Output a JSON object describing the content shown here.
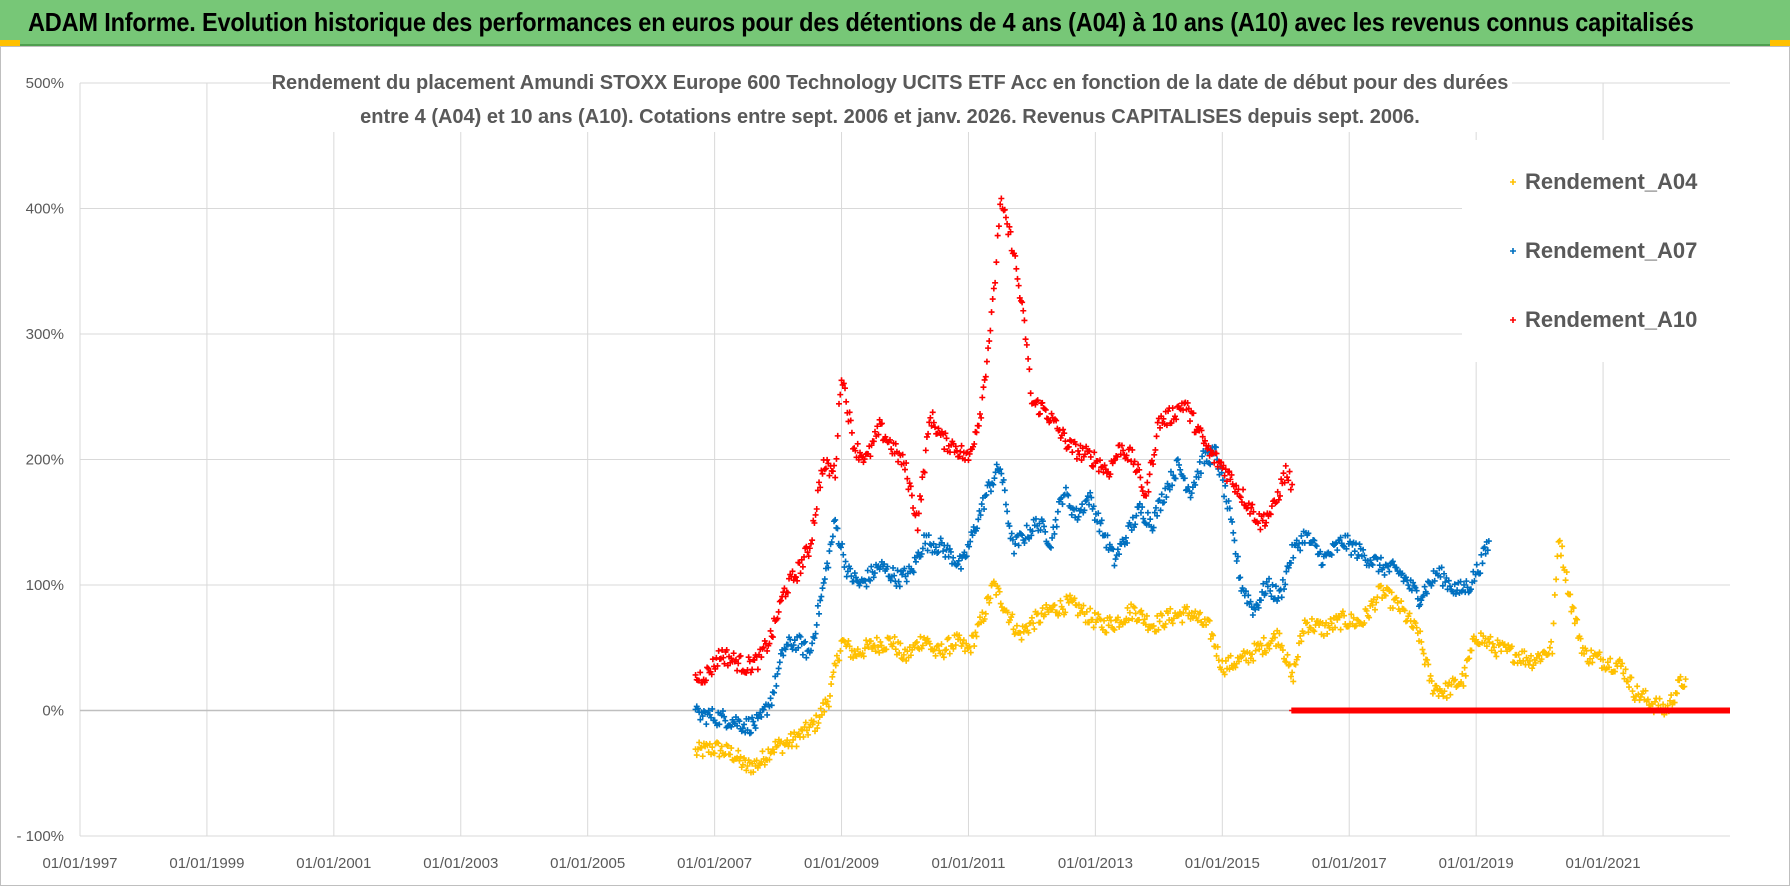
{
  "header": {
    "title": "ADAM Informe. Evolution historique des performances en euros pour des détentions de 4 ans (A04) à 10 ans (A10) avec les revenus connus capitalisés"
  },
  "colors": {
    "header_bg": "#77c777",
    "A04": "#ffc000",
    "A07": "#0070c0",
    "A10": "#ff0000"
  },
  "chart_data": {
    "type": "scatter",
    "title_line1": "Rendement du placement Amundi STOXX Europe 600 Technology UCITS ETF Acc en fonction de la date de début pour des durées",
    "title_line2": "entre 4 (A04) et 10 ans (A10).  Cotations entre sept. 2006 et janv. 2026. Revenus CAPITALISES depuis sept. 2006.",
    "xlabel": "",
    "ylabel": "",
    "x_range": [
      1997.0,
      2023.0
    ],
    "ylim": [
      -100,
      500
    ],
    "y_ticks": [
      -100,
      0,
      100,
      200,
      300,
      400,
      500
    ],
    "y_tick_labels": [
      "- 100%",
      "0%",
      "100%",
      "200%",
      "300%",
      "400%",
      "500%"
    ],
    "x_ticks": [
      1997,
      1999,
      2001,
      2003,
      2005,
      2007,
      2009,
      2011,
      2013,
      2015,
      2017,
      2019,
      2021
    ],
    "x_tick_labels": [
      "01/01/1997",
      "01/01/1999",
      "01/01/2001",
      "01/01/2003",
      "01/01/2005",
      "01/01/2007",
      "01/01/2009",
      "01/01/2011",
      "01/01/2013",
      "01/01/2015",
      "01/01/2017",
      "01/01/2019",
      "01/01/2021"
    ],
    "grid": true,
    "legend_position": "top-right",
    "series": [
      {
        "name": "Rendement_A04",
        "color": "#ffc000",
        "points": [
          [
            2006.7,
            -33
          ],
          [
            2007.0,
            -30
          ],
          [
            2007.3,
            -35
          ],
          [
            2007.5,
            -45
          ],
          [
            2007.7,
            -42
          ],
          [
            2007.9,
            -30
          ],
          [
            2008.2,
            -25
          ],
          [
            2008.4,
            -18
          ],
          [
            2008.6,
            -10
          ],
          [
            2008.8,
            10
          ],
          [
            2009.0,
            55
          ],
          [
            2009.2,
            45
          ],
          [
            2009.5,
            52
          ],
          [
            2009.8,
            55
          ],
          [
            2010.0,
            42
          ],
          [
            2010.3,
            58
          ],
          [
            2010.5,
            45
          ],
          [
            2010.8,
            55
          ],
          [
            2011.0,
            48
          ],
          [
            2011.2,
            70
          ],
          [
            2011.4,
            100
          ],
          [
            2011.6,
            80
          ],
          [
            2011.8,
            60
          ],
          [
            2012.0,
            70
          ],
          [
            2012.3,
            80
          ],
          [
            2012.6,
            85
          ],
          [
            2012.9,
            75
          ],
          [
            2013.1,
            68
          ],
          [
            2013.3,
            70
          ],
          [
            2013.6,
            80
          ],
          [
            2013.9,
            68
          ],
          [
            2014.2,
            75
          ],
          [
            2014.5,
            78
          ],
          [
            2014.8,
            65
          ],
          [
            2015.0,
            35
          ],
          [
            2015.3,
            40
          ],
          [
            2015.6,
            50
          ],
          [
            2015.9,
            60
          ],
          [
            2016.1,
            25
          ],
          [
            2016.3,
            70
          ],
          [
            2016.6,
            65
          ],
          [
            2016.9,
            72
          ],
          [
            2017.2,
            70
          ],
          [
            2017.5,
            95
          ],
          [
            2017.8,
            82
          ],
          [
            2018.1,
            60
          ],
          [
            2018.3,
            20
          ],
          [
            2018.5,
            15
          ],
          [
            2018.8,
            25
          ],
          [
            2019.0,
            60
          ],
          [
            2019.3,
            50
          ],
          [
            2019.6,
            45
          ],
          [
            2019.9,
            40
          ],
          [
            2020.2,
            50
          ],
          [
            2020.3,
            140
          ],
          [
            2020.5,
            85
          ],
          [
            2020.7,
            45
          ],
          [
            2021.0,
            40
          ],
          [
            2021.3,
            35
          ],
          [
            2021.5,
            15
          ],
          [
            2021.8,
            5
          ],
          [
            2022.0,
            0
          ],
          [
            2022.2,
            20
          ],
          [
            2022.3,
            25
          ]
        ]
      },
      {
        "name": "Rendement_A07",
        "color": "#0070c0",
        "points": [
          [
            2006.7,
            -3
          ],
          [
            2007.0,
            -5
          ],
          [
            2007.3,
            -8
          ],
          [
            2007.5,
            -12
          ],
          [
            2007.7,
            -10
          ],
          [
            2007.9,
            10
          ],
          [
            2008.1,
            50
          ],
          [
            2008.3,
            55
          ],
          [
            2008.5,
            45
          ],
          [
            2008.7,
            95
          ],
          [
            2008.9,
            150
          ],
          [
            2009.1,
            110
          ],
          [
            2009.3,
            100
          ],
          [
            2009.6,
            115
          ],
          [
            2009.9,
            105
          ],
          [
            2010.1,
            110
          ],
          [
            2010.3,
            135
          ],
          [
            2010.6,
            130
          ],
          [
            2010.9,
            115
          ],
          [
            2011.1,
            145
          ],
          [
            2011.3,
            175
          ],
          [
            2011.5,
            195
          ],
          [
            2011.7,
            130
          ],
          [
            2011.9,
            140
          ],
          [
            2012.1,
            150
          ],
          [
            2012.3,
            135
          ],
          [
            2012.5,
            175
          ],
          [
            2012.7,
            155
          ],
          [
            2012.9,
            170
          ],
          [
            2013.1,
            145
          ],
          [
            2013.3,
            120
          ],
          [
            2013.5,
            140
          ],
          [
            2013.7,
            160
          ],
          [
            2013.9,
            150
          ],
          [
            2014.1,
            175
          ],
          [
            2014.3,
            195
          ],
          [
            2014.5,
            175
          ],
          [
            2014.7,
            200
          ],
          [
            2014.9,
            205
          ],
          [
            2015.1,
            160
          ],
          [
            2015.3,
            100
          ],
          [
            2015.5,
            80
          ],
          [
            2015.7,
            100
          ],
          [
            2015.9,
            90
          ],
          [
            2016.1,
            125
          ],
          [
            2016.3,
            140
          ],
          [
            2016.6,
            120
          ],
          [
            2016.9,
            135
          ],
          [
            2017.2,
            125
          ],
          [
            2017.5,
            115
          ],
          [
            2017.8,
            110
          ],
          [
            2018.1,
            90
          ],
          [
            2018.4,
            110
          ],
          [
            2018.7,
            95
          ],
          [
            2018.9,
            100
          ],
          [
            2019.1,
            120
          ],
          [
            2019.2,
            135
          ]
        ]
      },
      {
        "name": "Rendement_A10",
        "color": "#ff0000",
        "points": [
          [
            2006.7,
            25
          ],
          [
            2006.9,
            30
          ],
          [
            2007.1,
            45
          ],
          [
            2007.3,
            40
          ],
          [
            2007.5,
            35
          ],
          [
            2007.7,
            40
          ],
          [
            2007.9,
            60
          ],
          [
            2008.1,
            95
          ],
          [
            2008.3,
            110
          ],
          [
            2008.5,
            130
          ],
          [
            2008.7,
            195
          ],
          [
            2008.9,
            190
          ],
          [
            2009.0,
            270
          ],
          [
            2009.2,
            210
          ],
          [
            2009.4,
            200
          ],
          [
            2009.6,
            225
          ],
          [
            2009.8,
            210
          ],
          [
            2010.0,
            195
          ],
          [
            2010.2,
            150
          ],
          [
            2010.4,
            235
          ],
          [
            2010.6,
            215
          ],
          [
            2010.8,
            210
          ],
          [
            2011.0,
            200
          ],
          [
            2011.2,
            240
          ],
          [
            2011.4,
            330
          ],
          [
            2011.5,
            405
          ],
          [
            2011.7,
            370
          ],
          [
            2011.9,
            300
          ],
          [
            2012.0,
            245
          ],
          [
            2012.2,
            240
          ],
          [
            2012.4,
            225
          ],
          [
            2012.6,
            210
          ],
          [
            2012.8,
            205
          ],
          [
            2013.0,
            200
          ],
          [
            2013.2,
            190
          ],
          [
            2013.4,
            210
          ],
          [
            2013.6,
            200
          ],
          [
            2013.8,
            170
          ],
          [
            2014.0,
            230
          ],
          [
            2014.2,
            235
          ],
          [
            2014.4,
            245
          ],
          [
            2014.6,
            225
          ],
          [
            2014.8,
            205
          ],
          [
            2015.0,
            195
          ],
          [
            2015.2,
            180
          ],
          [
            2015.4,
            165
          ],
          [
            2015.6,
            150
          ],
          [
            2015.8,
            160
          ],
          [
            2016.0,
            190
          ],
          [
            2016.1,
            180
          ]
        ]
      }
    ],
    "zero_band": {
      "series": "Rendement_A10",
      "from": 2016.1,
      "to": 2023.0,
      "value": 0
    }
  }
}
